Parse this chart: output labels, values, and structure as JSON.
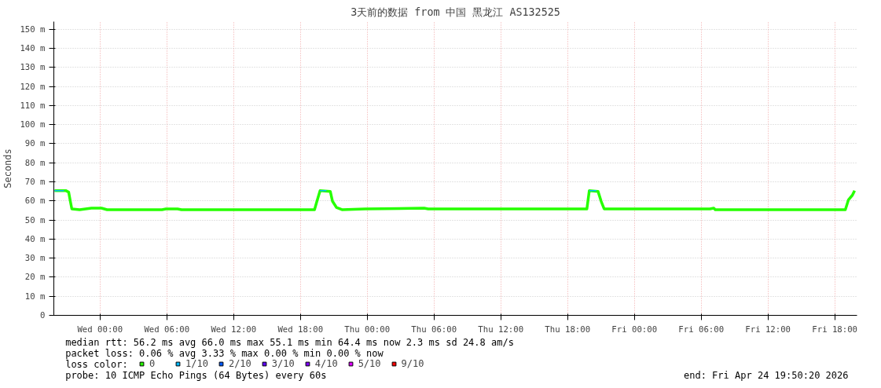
{
  "chart_data": {
    "type": "line",
    "title": "3天前的数据 from 中国 黑龙江 AS132525",
    "ylabel": "Seconds",
    "xlim": [
      "2026-04-21T19:51",
      "2026-04-24T20:00"
    ],
    "xticks": [
      {
        "value": "2026-04-22T00:00",
        "label": "Wed 00:00"
      },
      {
        "value": "2026-04-22T06:00",
        "label": "Wed 06:00"
      },
      {
        "value": "2026-04-22T12:00",
        "label": "Wed 12:00"
      },
      {
        "value": "2026-04-22T18:00",
        "label": "Wed 18:00"
      },
      {
        "value": "2026-04-23T00:00",
        "label": "Thu 00:00"
      },
      {
        "value": "2026-04-23T06:00",
        "label": "Thu 06:00"
      },
      {
        "value": "2026-04-23T12:00",
        "label": "Thu 12:00"
      },
      {
        "value": "2026-04-23T18:00",
        "label": "Thu 18:00"
      },
      {
        "value": "2026-04-24T00:00",
        "label": "Fri 00:00"
      },
      {
        "value": "2026-04-24T06:00",
        "label": "Fri 06:00"
      },
      {
        "value": "2026-04-24T12:00",
        "label": "Fri 12:00"
      },
      {
        "value": "2026-04-24T18:00",
        "label": "Fri 18:00"
      }
    ],
    "ylim": [
      0,
      154
    ],
    "yticks": [
      0,
      {
        "value": 10,
        "label": "10 m"
      },
      {
        "value": 20,
        "label": "20 m"
      },
      {
        "value": 30,
        "label": "30 m"
      },
      {
        "value": 40,
        "label": "40 m"
      },
      {
        "value": 50,
        "label": "50 m"
      },
      {
        "value": 60,
        "label": "60 m"
      },
      {
        "value": 70,
        "label": "70 m"
      },
      {
        "value": 80,
        "label": "80 m"
      },
      {
        "value": 90,
        "label": "90 m"
      },
      {
        "value": 100,
        "label": "100 m"
      },
      {
        "value": 110,
        "label": "110 m"
      },
      {
        "value": 120,
        "label": "120 m"
      },
      {
        "value": 130,
        "label": "130 m"
      },
      {
        "value": 140,
        "label": "140 m"
      },
      {
        "value": 150,
        "label": "150 m"
      }
    ],
    "grid": true,
    "legend": "bottom",
    "legend_title": "loss color:",
    "line_style": "solid",
    "series": [
      {
        "name": "0",
        "color": "#26ff00",
        "x": [
          "2026-04-21T19:55",
          "2026-04-21T20:55",
          "2026-04-21T21:11",
          "2026-04-21T21:20",
          "2026-04-21T21:28",
          "2026-04-21T22:10",
          "2026-04-21T23:14",
          "2026-04-22T00:08",
          "2026-04-22T00:38",
          "2026-04-22T05:34",
          "2026-04-22T05:55",
          "2026-04-22T06:58",
          "2026-04-22T07:19",
          "2026-04-22T19:16",
          "2026-04-22T19:29",
          "2026-04-22T19:46",
          "2026-04-22T20:41",
          "2026-04-22T20:53",
          "2026-04-22T21:14",
          "2026-04-22T21:44",
          "2026-04-22T23:50",
          "2026-04-23T05:07",
          "2026-04-23T05:28",
          "2026-04-23T19:44",
          "2026-04-23T19:57",
          "2026-04-23T20:44",
          "2026-04-23T21:01",
          "2026-04-23T21:17",
          "2026-04-24T06:47",
          "2026-04-24T07:08",
          "2026-04-24T07:16",
          "2026-04-24T18:57",
          "2026-04-24T19:14",
          "2026-04-24T19:35",
          "2026-04-24T19:47"
        ],
        "values": [
          65.4,
          65.4,
          64.6,
          59.8,
          55.8,
          55.4,
          56.2,
          56.2,
          55.4,
          55.4,
          55.8,
          55.8,
          55.4,
          55.4,
          59.8,
          65.4,
          65.0,
          59.8,
          56.6,
          55.4,
          55.8,
          56.2,
          55.8,
          55.8,
          65.4,
          65.0,
          59.8,
          55.8,
          55.8,
          56.2,
          55.4,
          55.4,
          60.6,
          63.0,
          65.4
        ]
      },
      {
        "name": "1/10",
        "color": "#00b8ff",
        "x": [
          "2026-04-21T19:55",
          "2026-04-21T20:46",
          "2026-04-22T08:00",
          "2026-04-22T19:46",
          "2026-04-22T20:20",
          "2026-04-23T07:00",
          "2026-04-23T19:57",
          "2026-04-23T20:35"
        ],
        "values": [
          65.4,
          65.4,
          null,
          65.4,
          65.4,
          null,
          65.4,
          65.4
        ]
      },
      {
        "name": "2/10",
        "color": "#0059ff"
      },
      {
        "name": "3/10",
        "color": "#5e00ff"
      },
      {
        "name": "4/10",
        "color": "#7e00ff"
      },
      {
        "name": "5/10",
        "color": "#dd00ff"
      },
      {
        "name": "9/10",
        "color": "#ff0000"
      }
    ],
    "annotations": [
      "median rtt:  56.2 ms avg  66.0 ms max  55.1 ms min  64.4 ms now  2.3 ms sd  24.8   am/s",
      "packet loss: 0.06 % avg  3.33 % max  0.00 % min  0.00 % now",
      "probe:       10 ICMP Echo Pings (64 Bytes) every 60s",
      "end: Fri Apr 24 19:50:20 2026"
    ]
  }
}
